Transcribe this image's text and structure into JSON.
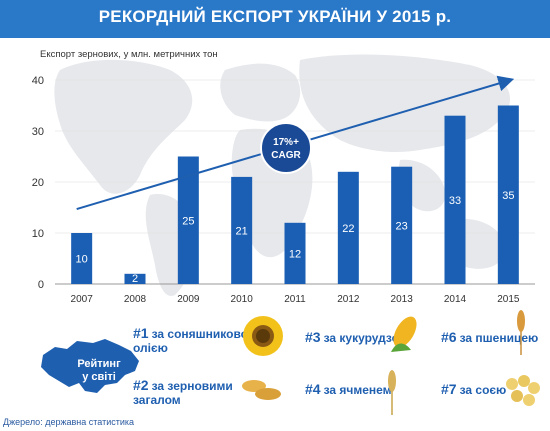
{
  "header": {
    "title": "РЕКОРДНИЙ ЕКСПОРТ УКРАЇНИ У 2015 р."
  },
  "chart_data": {
    "type": "bar",
    "title": "",
    "ylabel": "Експорт зернових, у млн. метричних тон",
    "categories": [
      "2007",
      "2008",
      "2009",
      "2010",
      "2011",
      "2012",
      "2013",
      "2014",
      "2015"
    ],
    "values": [
      10,
      2,
      25,
      21,
      12,
      22,
      23,
      33,
      35
    ],
    "ylim": [
      0,
      40
    ],
    "yticks": [
      "0",
      "10",
      "20",
      "30",
      "40"
    ],
    "bar_color": "#1a5fb4",
    "trend_label_line1": "17%+",
    "trend_label_line2": "CAGR"
  },
  "rating": {
    "label_line1": "Рейтинг",
    "label_line2": "у світі",
    "items": [
      {
        "rank": "#1",
        "text_line1": "за соняшниковою",
        "text_line2": "олією",
        "icon": "sunflower-icon"
      },
      {
        "rank": "#2",
        "text_line1": "за зерновими",
        "text_line2": "загалом",
        "icon": "seeds-icon"
      },
      {
        "rank": "#3",
        "text_line1": "за кукурудзою",
        "text_line2": "",
        "icon": "corn-icon"
      },
      {
        "rank": "#4",
        "text_line1": "за ячменем",
        "text_line2": "",
        "icon": "barley-icon"
      },
      {
        "rank": "#6",
        "text_line1": "за пшеницею",
        "text_line2": "",
        "icon": "wheat-icon"
      },
      {
        "rank": "#7",
        "text_line1": "за соєю",
        "text_line2": "",
        "icon": "soybean-icon"
      }
    ]
  },
  "footer": {
    "source": "Джерело: державна статистика"
  },
  "colors": {
    "header": "#2a78c8",
    "accent": "#1a5fb4",
    "map": "#e6e8ec"
  }
}
